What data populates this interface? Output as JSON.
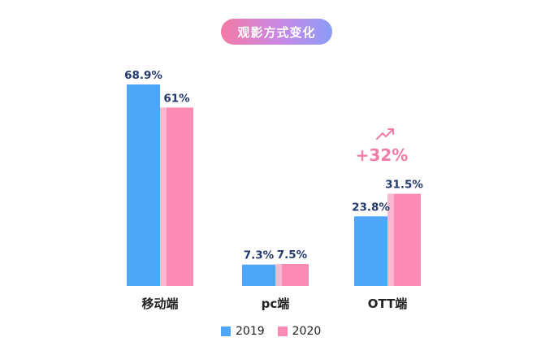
{
  "colors": {
    "series_2019": "#4da6f7",
    "series_2020": "#fb8bb4",
    "series_2020_shade": "#f9b8cf",
    "growth": "#f07da9"
  },
  "chart_data": {
    "type": "bar",
    "title": "观影方式变化",
    "categories": [
      "移动端",
      "pc端",
      "OTT端"
    ],
    "series": [
      {
        "name": "2019",
        "values": [
          68.9,
          7.3,
          23.8
        ],
        "labels": [
          "68.9%",
          "7.3%",
          "23.8%"
        ]
      },
      {
        "name": "2020",
        "values": [
          61,
          7.5,
          31.5
        ],
        "labels": [
          "61%",
          "7.5%",
          "31.5%"
        ]
      }
    ],
    "ylim": [
      0,
      68.9
    ],
    "grid": false,
    "legend": "bottom-center",
    "annotations": [
      {
        "category": "OTT端",
        "text": "+32%",
        "icon": "trend-up-icon"
      }
    ]
  }
}
